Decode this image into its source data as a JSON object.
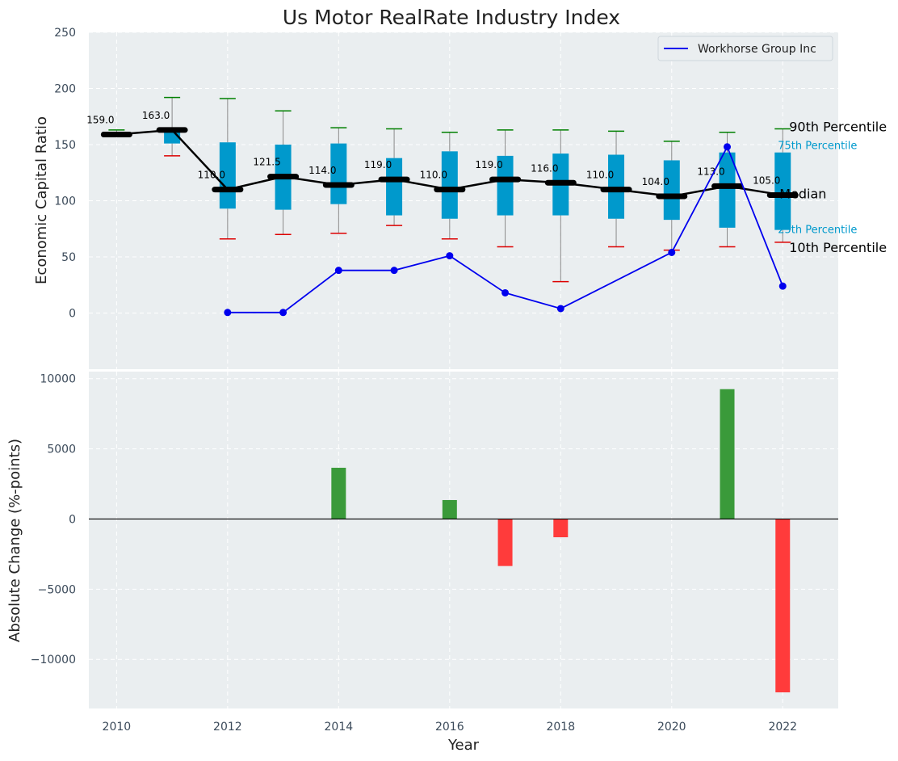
{
  "chart_data": [
    {
      "type": "box",
      "title": "Us Motor RealRate Industry Index",
      "xlabel": "",
      "ylabel": "Economic Capital Ratio",
      "ylim": [
        -50,
        250
      ],
      "yticks": [
        0,
        50,
        100,
        150,
        200,
        250
      ],
      "xlim": [
        2009.5,
        2023
      ],
      "grid": true,
      "legend": {
        "placement": "top-right",
        "entries": [
          "Workhorse Group Inc"
        ]
      },
      "years": [
        2010,
        2011,
        2012,
        2013,
        2014,
        2015,
        2016,
        2017,
        2018,
        2019,
        2020,
        2021,
        2022
      ],
      "median": [
        159.0,
        163.0,
        110.0,
        121.5,
        114.0,
        119.0,
        110.0,
        119.0,
        116.0,
        110.0,
        104.0,
        113.0,
        105.0
      ],
      "median_labels": [
        "159.0",
        "163.0",
        "110.0",
        "121.5",
        "114.0",
        "119.0",
        "110.0",
        "119.0",
        "116.0",
        "110.0",
        "104.0",
        "113.0",
        "105.0"
      ],
      "q1": [
        159,
        151,
        93,
        92,
        97,
        87,
        84,
        87,
        87,
        84,
        83,
        76,
        74
      ],
      "q3": [
        159,
        163,
        152,
        150,
        151,
        138,
        144,
        140,
        142,
        141,
        136,
        143,
        143
      ],
      "p10": [
        159,
        140,
        66,
        70,
        71,
        78,
        66,
        59,
        28,
        59,
        56,
        59,
        63
      ],
      "p90": [
        163,
        192,
        191,
        180,
        165,
        164,
        161,
        163,
        163,
        162,
        153,
        161,
        164
      ],
      "company_series": {
        "name": "Workhorse Group Inc",
        "x": [
          2012,
          2013,
          2014,
          2015,
          2016,
          2017,
          2018,
          2020,
          2021,
          2022
        ],
        "y": [
          0.5,
          0.5,
          38,
          38,
          51,
          18,
          4,
          54,
          148,
          24
        ]
      },
      "percentile_labels": {
        "p90": "90th Percentile",
        "q3": "75th Percentile",
        "median": "Median",
        "q1": "25th Percentile",
        "p10": "10th Percentile"
      },
      "colors": {
        "box": "#0099cc",
        "median_line": "#000000",
        "company": "#0000ee",
        "whisker_top": "#008000",
        "whisker_bottom": "#dd0000",
        "pct_small": "#0099cc",
        "background": "#eaeef0"
      }
    },
    {
      "type": "bar",
      "xlabel": "Year",
      "ylabel": "Absolute Change (%-points)",
      "ylim": [
        -13500,
        10500
      ],
      "yticks": [
        -10000,
        -5000,
        0,
        5000,
        10000
      ],
      "ytick_labels": [
        "−10000",
        "−5000",
        "0",
        "5000",
        "10000"
      ],
      "xticks": [
        2010,
        2012,
        2014,
        2016,
        2018,
        2020,
        2022
      ],
      "x": [
        2014,
        2016,
        2017,
        2018,
        2021,
        2022
      ],
      "values": [
        3650,
        1350,
        -3350,
        -1300,
        9250,
        -12350
      ],
      "colors": {
        "positive": "#3a9a3a",
        "negative": "#ff3b3b"
      }
    }
  ]
}
